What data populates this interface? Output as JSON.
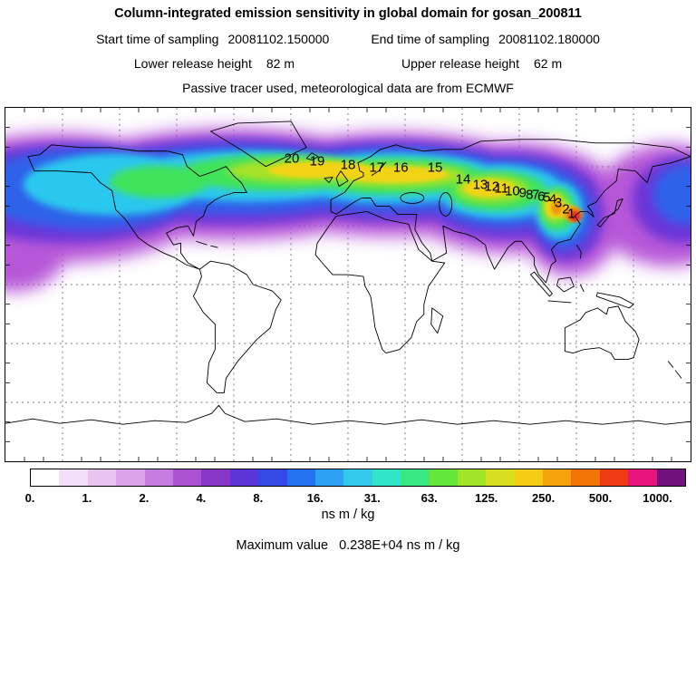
{
  "header": {
    "title": "Column-integrated emission sensitivity in global domain for gosan_200811",
    "sampling": {
      "start_label": "Start time of sampling",
      "start_value": "20081102.150000",
      "end_label": "End time of sampling",
      "end_value": "20081102.180000"
    },
    "release": {
      "lower_label": "Lower release height",
      "lower_value": "82 m",
      "upper_label": "Upper release height",
      "upper_value": "62 m"
    },
    "tracer_line": "Passive tracer used, meteorological data are from ECMWF"
  },
  "chart_data": {
    "type": "heatmap",
    "title": "Column-integrated emission sensitivity in global domain for gosan_200811",
    "station": "gosan_200811",
    "projection": "global equirectangular world map",
    "extent": {
      "lon": [
        -180,
        180
      ],
      "lat": [
        -90,
        90
      ]
    },
    "gridline_step_deg": 30,
    "units": "ns m / kg",
    "max_value_text": "0.238E+04 ns m / kg",
    "colorbar": {
      "ticks": [
        "0.",
        "1.",
        "2.",
        "4.",
        "8.",
        "16.",
        "31.",
        "63.",
        "125.",
        "250.",
        "500.",
        "1000."
      ],
      "segment_colors": [
        "#ffffff",
        "#f3def7",
        "#e9c4f1",
        "#dba3ea",
        "#c77ce1",
        "#ab52d3",
        "#8836c6",
        "#5c35d8",
        "#3548e5",
        "#2472ee",
        "#2ca0f1",
        "#33c9ec",
        "#33e5c8",
        "#3ae883",
        "#62e73a",
        "#a2e428",
        "#d9df1f",
        "#f4cd14",
        "#f4a30c",
        "#f17407",
        "#ee3b12",
        "#e8137c",
        "#70117e"
      ],
      "units_label": "ns m / kg"
    },
    "trajectory_markers": [
      {
        "label": "20",
        "x_pct": 41.8,
        "y_pct": 14.3
      },
      {
        "label": "19",
        "x_pct": 45.5,
        "y_pct": 15.1
      },
      {
        "label": "18",
        "x_pct": 50.0,
        "y_pct": 16.1
      },
      {
        "label": "17",
        "x_pct": 54.2,
        "y_pct": 17.0
      },
      {
        "label": "16",
        "x_pct": 57.7,
        "y_pct": 16.8
      },
      {
        "label": "15",
        "x_pct": 62.7,
        "y_pct": 16.8
      },
      {
        "label": "14",
        "x_pct": 66.8,
        "y_pct": 20.2
      },
      {
        "label": "13",
        "x_pct": 69.3,
        "y_pct": 21.9
      },
      {
        "label": "12",
        "x_pct": 71.0,
        "y_pct": 22.4
      },
      {
        "label": "11",
        "x_pct": 72.4,
        "y_pct": 22.7
      },
      {
        "label": "10",
        "x_pct": 74.0,
        "y_pct": 23.5
      },
      {
        "label": "9",
        "x_pct": 75.5,
        "y_pct": 24.0
      },
      {
        "label": "8",
        "x_pct": 76.5,
        "y_pct": 24.5
      },
      {
        "label": "7",
        "x_pct": 77.4,
        "y_pct": 24.7
      },
      {
        "label": "6",
        "x_pct": 78.2,
        "y_pct": 25.0
      },
      {
        "label": "5",
        "x_pct": 79.0,
        "y_pct": 25.3
      },
      {
        "label": "4",
        "x_pct": 79.9,
        "y_pct": 25.8
      },
      {
        "label": "3",
        "x_pct": 80.7,
        "y_pct": 27.0
      },
      {
        "label": "2",
        "x_pct": 81.8,
        "y_pct": 28.8
      },
      {
        "label": "1",
        "x_pct": 82.6,
        "y_pct": 30.1
      }
    ]
  },
  "footer": {
    "units_label": "ns m / kg",
    "max_label": "Maximum value",
    "max_value": "0.238E+04 ns m / kg"
  }
}
